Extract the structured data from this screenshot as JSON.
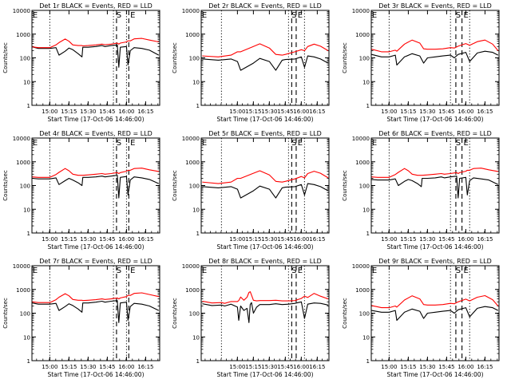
{
  "figure": {
    "xlabel": "Start Time (17-Oct-06 14:46:00)",
    "ylabel": "Counts/sec",
    "colors": {
      "events": "#000000",
      "lld": "#ff0000",
      "axes": "#000000",
      "background": "#ffffff"
    },
    "yscale": "log",
    "ylim": [
      1,
      10000
    ],
    "y_ticks": [
      "1",
      "10",
      "100",
      "1000",
      "10000"
    ],
    "x_tick_values": [
      15.0,
      15.25,
      15.5,
      15.75,
      16.0,
      16.25
    ],
    "x_tick_labels": [
      "15:00",
      "15:15",
      "15:30",
      "15:45",
      "16:00",
      "16:15"
    ],
    "markers": {
      "s_label": "S",
      "e_label": "E",
      "edge_label": "E"
    }
  },
  "chart_data": [
    {
      "type": "line",
      "title": "Det 1r BLACK = Events, RED = LLD",
      "xlim": [
        14.767,
        16.433
      ],
      "x": [
        14.77,
        14.85,
        15.0,
        15.08,
        15.12,
        15.2,
        15.25,
        15.3,
        15.37,
        15.42,
        15.43,
        15.5,
        15.6,
        15.68,
        15.72,
        15.8,
        15.88,
        15.9,
        15.92,
        16.0,
        16.02,
        16.05,
        16.1,
        16.2,
        16.3,
        16.42
      ],
      "series": [
        {
          "name": "BLACK = Events",
          "values": [
            290,
            250,
            250,
            270,
            130,
            190,
            260,
            220,
            150,
            110,
            280,
            280,
            300,
            330,
            300,
            330,
            350,
            40,
            280,
            300,
            50,
            200,
            270,
            250,
            210,
            130
          ]
        },
        {
          "name": "RED = LLD",
          "values": [
            290,
            270,
            270,
            350,
            440,
            620,
            500,
            350,
            330,
            330,
            320,
            330,
            350,
            380,
            360,
            380,
            420,
            380,
            420,
            470,
            520,
            520,
            630,
            660,
            560,
            470
          ]
        }
      ],
      "dotted": [
        15.0,
        15.83,
        16.0
      ],
      "s_line": 15.87,
      "e_line": 16.03,
      "edge_mark": true
    },
    {
      "type": "line",
      "title": "Det 2r BLACK = Events, RED = LLD",
      "xlim": [
        14.433,
        16.433
      ],
      "x": [
        14.45,
        14.7,
        14.9,
        15.0,
        15.05,
        15.25,
        15.35,
        15.5,
        15.6,
        15.7,
        15.75,
        15.9,
        16.0,
        16.05,
        16.1,
        16.2,
        16.3,
        16.42
      ],
      "series": [
        {
          "name": "BLACK = Events",
          "values": [
            90,
            80,
            90,
            70,
            30,
            60,
            95,
            70,
            30,
            80,
            85,
            90,
            110,
            40,
            120,
            110,
            90,
            60
          ]
        },
        {
          "name": "RED = LLD",
          "values": [
            120,
            110,
            130,
            180,
            180,
            300,
            390,
            260,
            140,
            130,
            140,
            180,
            220,
            200,
            300,
            380,
            310,
            200
          ]
        }
      ],
      "dotted": [
        14.75,
        15.8,
        16.05
      ],
      "s_line": 15.85,
      "e_line": 15.92,
      "edge_mark": true
    },
    {
      "type": "line",
      "title": "Det 3r BLACK = Events, RED = LLD",
      "xlim": [
        14.767,
        16.433
      ],
      "x": [
        14.77,
        14.9,
        15.0,
        15.08,
        15.1,
        15.2,
        15.3,
        15.4,
        15.45,
        15.5,
        15.6,
        15.7,
        15.8,
        15.85,
        15.9,
        16.0,
        16.05,
        16.15,
        16.25,
        16.35,
        16.42
      ],
      "series": [
        {
          "name": "BLACK = Events",
          "values": [
            140,
            110,
            110,
            130,
            50,
            110,
            150,
            120,
            60,
            100,
            110,
            120,
            130,
            100,
            140,
            170,
            70,
            160,
            190,
            170,
            130
          ]
        },
        {
          "name": "RED = LLD",
          "values": [
            230,
            180,
            180,
            210,
            190,
            380,
            560,
            420,
            240,
            230,
            230,
            240,
            270,
            260,
            310,
            400,
            340,
            480,
            560,
            380,
            200
          ]
        }
      ],
      "dotted": [
        15.0,
        15.8,
        16.05
      ],
      "s_line": 15.87,
      "e_line": 15.95,
      "edge_mark": true
    },
    {
      "type": "line",
      "title": "Det 4r BLACK = Events, RED = LLD",
      "xlim": [
        14.767,
        16.433
      ],
      "x": [
        14.77,
        14.85,
        15.0,
        15.08,
        15.12,
        15.2,
        15.25,
        15.3,
        15.37,
        15.42,
        15.43,
        15.5,
        15.6,
        15.68,
        15.72,
        15.8,
        15.88,
        15.9,
        15.92,
        16.0,
        16.02,
        16.05,
        16.1,
        16.2,
        16.3,
        16.42
      ],
      "series": [
        {
          "name": "BLACK = Events",
          "values": [
            200,
            190,
            190,
            210,
            110,
            160,
            200,
            170,
            130,
            100,
            220,
            220,
            230,
            250,
            230,
            250,
            270,
            30,
            220,
            240,
            40,
            170,
            230,
            210,
            180,
            120
          ]
        },
        {
          "name": "RED = LLD",
          "values": [
            230,
            220,
            220,
            290,
            360,
            520,
            420,
            300,
            270,
            270,
            270,
            280,
            300,
            320,
            300,
            320,
            350,
            320,
            350,
            400,
            440,
            440,
            520,
            540,
            460,
            390
          ]
        }
      ],
      "dotted": [
        15.0,
        15.83,
        16.0
      ],
      "s_line": 15.87,
      "e_line": 16.03,
      "edge_mark": true
    },
    {
      "type": "line",
      "title": "Det 5r BLACK = Events, RED = LLD",
      "xlim": [
        14.433,
        16.433
      ],
      "x": [
        14.45,
        14.7,
        14.9,
        15.0,
        15.05,
        15.25,
        15.35,
        15.5,
        15.6,
        15.7,
        15.75,
        15.9,
        16.0,
        16.05,
        16.1,
        16.2,
        16.3,
        16.42
      ],
      "series": [
        {
          "name": "BLACK = Events",
          "values": [
            90,
            80,
            90,
            70,
            30,
            60,
            95,
            70,
            30,
            80,
            85,
            90,
            110,
            40,
            120,
            110,
            90,
            60
          ]
        },
        {
          "name": "RED = LLD",
          "values": [
            140,
            120,
            140,
            200,
            200,
            330,
            420,
            280,
            150,
            140,
            150,
            190,
            240,
            210,
            320,
            400,
            330,
            210
          ]
        }
      ],
      "dotted": [
        14.75,
        15.8,
        16.05
      ],
      "s_line": 15.85,
      "e_line": 15.92,
      "edge_mark": true
    },
    {
      "type": "line",
      "title": "Det 6r BLACK = Events, RED = LLD",
      "xlim": [
        14.767,
        16.433
      ],
      "x": [
        14.77,
        14.85,
        15.0,
        15.08,
        15.12,
        15.2,
        15.25,
        15.3,
        15.37,
        15.42,
        15.43,
        15.5,
        15.6,
        15.68,
        15.72,
        15.8,
        15.88,
        15.9,
        15.92,
        16.0,
        16.02,
        16.05,
        16.1,
        16.2,
        16.3,
        16.42
      ],
      "series": [
        {
          "name": "BLACK = Events",
          "values": [
            180,
            170,
            170,
            190,
            100,
            150,
            180,
            160,
            120,
            90,
            200,
            200,
            210,
            230,
            210,
            230,
            250,
            30,
            200,
            220,
            40,
            160,
            210,
            190,
            170,
            110
          ]
        },
        {
          "name": "RED = LLD",
          "values": [
            230,
            220,
            220,
            290,
            360,
            520,
            420,
            300,
            270,
            270,
            270,
            280,
            300,
            320,
            300,
            320,
            350,
            320,
            350,
            400,
            440,
            440,
            520,
            540,
            460,
            390
          ]
        }
      ],
      "dotted": [
        15.0,
        15.8,
        16.05
      ],
      "s_line": 15.87,
      "e_line": 15.95,
      "edge_mark": true
    },
    {
      "type": "line",
      "title": "Det 7r BLACK = Events, RED = LLD",
      "xlim": [
        14.767,
        16.433
      ],
      "x": [
        14.77,
        14.85,
        15.0,
        15.08,
        15.12,
        15.2,
        15.25,
        15.3,
        15.37,
        15.42,
        15.43,
        15.5,
        15.6,
        15.68,
        15.72,
        15.8,
        15.88,
        15.9,
        15.92,
        16.0,
        16.02,
        16.05,
        16.1,
        16.2,
        16.3,
        16.42
      ],
      "series": [
        {
          "name": "BLACK = Events",
          "values": [
            270,
            240,
            240,
            260,
            130,
            190,
            250,
            210,
            150,
            110,
            270,
            270,
            290,
            320,
            290,
            320,
            340,
            40,
            270,
            290,
            50,
            190,
            260,
            240,
            200,
            130
          ]
        },
        {
          "name": "RED = LLD",
          "values": [
            300,
            280,
            280,
            370,
            470,
            660,
            540,
            380,
            350,
            350,
            340,
            350,
            370,
            400,
            380,
            400,
            440,
            400,
            440,
            500,
            560,
            560,
            680,
            720,
            610,
            500
          ]
        }
      ],
      "dotted": [
        15.0,
        15.83,
        16.0
      ],
      "s_line": 15.87,
      "e_line": 16.03,
      "edge_mark": true
    },
    {
      "type": "line",
      "title": "Det 8r BLACK = Events, RED = LLD",
      "xlim": [
        14.433,
        16.433
      ],
      "x": [
        14.45,
        14.6,
        14.75,
        14.8,
        14.9,
        15.0,
        15.02,
        15.05,
        15.1,
        15.15,
        15.18,
        15.2,
        15.22,
        15.25,
        15.3,
        15.35,
        15.5,
        15.6,
        15.7,
        15.8,
        15.9,
        16.0,
        16.05,
        16.1,
        16.2,
        16.3,
        16.42
      ],
      "series": [
        {
          "name": "BLACK = Events",
          "values": [
            250,
            210,
            220,
            200,
            240,
            180,
            50,
            200,
            130,
            160,
            40,
            230,
            280,
            100,
            180,
            230,
            230,
            250,
            230,
            240,
            260,
            300,
            60,
            240,
            270,
            260,
            220
          ]
        },
        {
          "name": "RED = LLD",
          "values": [
            320,
            270,
            280,
            260,
            310,
            310,
            340,
            480,
            350,
            470,
            750,
            800,
            580,
            350,
            330,
            340,
            340,
            350,
            330,
            330,
            340,
            420,
            520,
            460,
            680,
            520,
            400
          ]
        }
      ],
      "dotted": [
        14.75,
        15.8,
        16.05
      ],
      "s_line": 15.85,
      "e_line": 15.92,
      "edge_mark": true
    },
    {
      "type": "line",
      "title": "Det 9r BLACK = Events, RED = LLD",
      "xlim": [
        14.767,
        16.433
      ],
      "x": [
        14.77,
        14.9,
        15.0,
        15.08,
        15.1,
        15.2,
        15.3,
        15.4,
        15.45,
        15.5,
        15.6,
        15.7,
        15.8,
        15.85,
        15.9,
        16.0,
        16.05,
        16.15,
        16.25,
        16.35,
        16.42
      ],
      "series": [
        {
          "name": "BLACK = Events",
          "values": [
            130,
            110,
            110,
            130,
            50,
            110,
            150,
            120,
            60,
            100,
            110,
            120,
            130,
            100,
            140,
            170,
            70,
            160,
            190,
            170,
            130
          ]
        },
        {
          "name": "RED = LLD",
          "values": [
            210,
            170,
            170,
            200,
            180,
            360,
            540,
            400,
            230,
            220,
            220,
            230,
            260,
            250,
            300,
            390,
            330,
            470,
            550,
            370,
            200
          ]
        }
      ],
      "dotted": [
        15.0,
        15.8,
        16.05
      ],
      "s_line": 15.87,
      "e_line": 15.95,
      "edge_mark": true
    }
  ]
}
